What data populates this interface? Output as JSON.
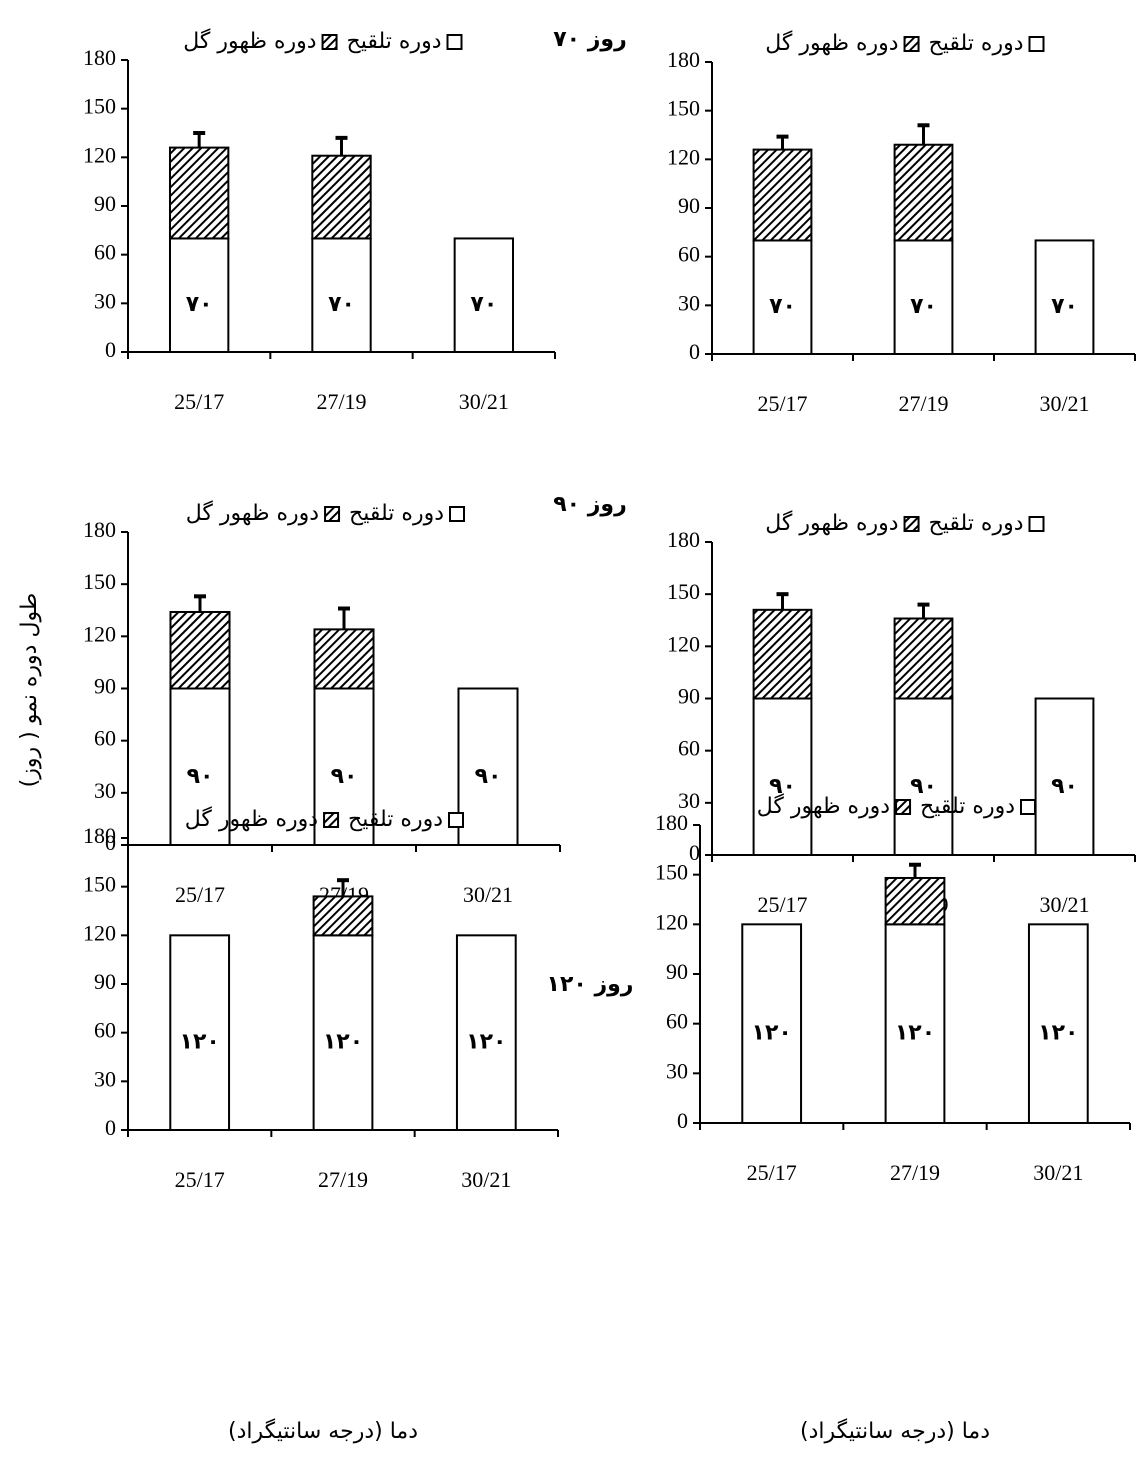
{
  "chart_data": [
    {
      "type": "bar",
      "stacked": true,
      "title": "۷۰ روز",
      "categories": [
        "25/17",
        "27/19",
        "30/21"
      ],
      "series": [
        {
          "name": "دوره تلقیح",
          "color": "#ffffff",
          "values": [
            70,
            70,
            70
          ],
          "value_labels": [
            "۷۰",
            "۷۰",
            "۷۰"
          ]
        },
        {
          "name": "دوره ظهور گل",
          "color": "#000000",
          "hatch": true,
          "values": [
            56,
            51,
            null
          ],
          "errors": [
            9,
            11,
            null
          ]
        }
      ],
      "ylim": [
        0,
        180
      ],
      "yticks": [
        0,
        30,
        60,
        90,
        120,
        150,
        180
      ],
      "legend": "top"
    },
    {
      "type": "bar",
      "stacked": true,
      "categories": [
        "25/17",
        "27/19",
        "30/21"
      ],
      "series": [
        {
          "name": "دوره تلقیح",
          "color": "#ffffff",
          "values": [
            70,
            70,
            70
          ],
          "value_labels": [
            "۷۰",
            "۷۰",
            "۷۰"
          ]
        },
        {
          "name": "دوره ظهور گل",
          "color": "#000000",
          "hatch": true,
          "values": [
            56,
            59,
            null
          ],
          "errors": [
            8,
            12,
            null
          ]
        }
      ],
      "ylim": [
        0,
        180
      ],
      "yticks": [
        0,
        30,
        60,
        90,
        120,
        150,
        180
      ],
      "legend": "top"
    },
    {
      "type": "bar",
      "stacked": true,
      "title": "۹۰ روز",
      "ylabel": "طول دوره نمو ( روز)",
      "categories": [
        "25/17",
        "27/19",
        "30/21"
      ],
      "series": [
        {
          "name": "دوره تلقیح",
          "color": "#ffffff",
          "values": [
            90,
            90,
            90
          ],
          "value_labels": [
            "۹۰",
            "۹۰",
            "۹۰"
          ]
        },
        {
          "name": "دوره ظهور گل",
          "color": "#000000",
          "hatch": true,
          "values": [
            44,
            34,
            null
          ],
          "errors": [
            9,
            12,
            null
          ]
        }
      ],
      "ylim": [
        0,
        180
      ],
      "yticks": [
        0,
        30,
        60,
        90,
        120,
        150,
        180
      ],
      "legend": "top"
    },
    {
      "type": "bar",
      "stacked": true,
      "categories": [
        "25/17",
        "27/19",
        "30/21"
      ],
      "series": [
        {
          "name": "دوره تلقیح",
          "color": "#ffffff",
          "values": [
            90,
            90,
            90
          ],
          "value_labels": [
            "۹۰",
            "۹۰",
            "۹۰"
          ]
        },
        {
          "name": "دوره ظهور گل",
          "color": "#000000",
          "hatch": true,
          "values": [
            51,
            46,
            null
          ],
          "errors": [
            9,
            8,
            null
          ]
        }
      ],
      "ylim": [
        0,
        180
      ],
      "yticks": [
        0,
        30,
        60,
        90,
        120,
        150,
        180
      ],
      "legend": "top"
    },
    {
      "type": "bar",
      "stacked": true,
      "title": "۱۲۰ روز",
      "xlabel": "دما (درجه سانتیگراد)",
      "categories": [
        "25/17",
        "27/19",
        "30/21"
      ],
      "series": [
        {
          "name": "دوره تلقیح",
          "color": "#ffffff",
          "values": [
            120,
            120,
            120
          ],
          "value_labels": [
            "۱۲۰",
            "۱۲۰",
            "۱۲۰"
          ]
        },
        {
          "name": "دوره ظهور گل",
          "color": "#000000",
          "hatch": true,
          "values": [
            null,
            24,
            null
          ],
          "errors": [
            null,
            10,
            null
          ]
        }
      ],
      "ylim": [
        0,
        180
      ],
      "yticks": [
        0,
        30,
        60,
        90,
        120,
        150,
        180
      ],
      "legend": "top"
    },
    {
      "type": "bar",
      "stacked": true,
      "xlabel": "دما (درجه سانتیگراد)",
      "categories": [
        "25/17",
        "27/19",
        "30/21"
      ],
      "series": [
        {
          "name": "دوره تلقیح",
          "color": "#ffffff",
          "values": [
            120,
            120,
            120
          ],
          "value_labels": [
            "۱۲۰",
            "۱۲۰",
            "۱۲۰"
          ]
        },
        {
          "name": "دوره ظهور گل",
          "color": "#000000",
          "hatch": true,
          "values": [
            null,
            28,
            null
          ],
          "errors": [
            null,
            8,
            null
          ]
        }
      ],
      "ylim": [
        0,
        180
      ],
      "yticks": [
        0,
        30,
        60,
        90,
        120,
        150,
        180
      ],
      "legend": "top"
    }
  ]
}
